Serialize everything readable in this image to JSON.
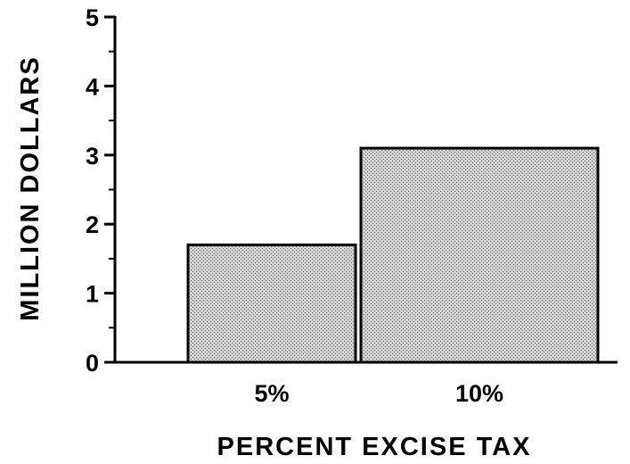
{
  "chart_data": {
    "type": "bar",
    "title": "",
    "xlabel": "PERCENT EXCISE TAX",
    "ylabel": "MILLION DOLLARS",
    "categories": [
      "5%",
      "10%"
    ],
    "values": [
      1.7,
      3.1
    ],
    "ylim": [
      0,
      5
    ],
    "yticks": [
      "0",
      "1",
      "2",
      "3",
      "4",
      "5"
    ],
    "grid": false,
    "bar_fill": "#c8c8c8",
    "bar_stroke": "#000000"
  }
}
